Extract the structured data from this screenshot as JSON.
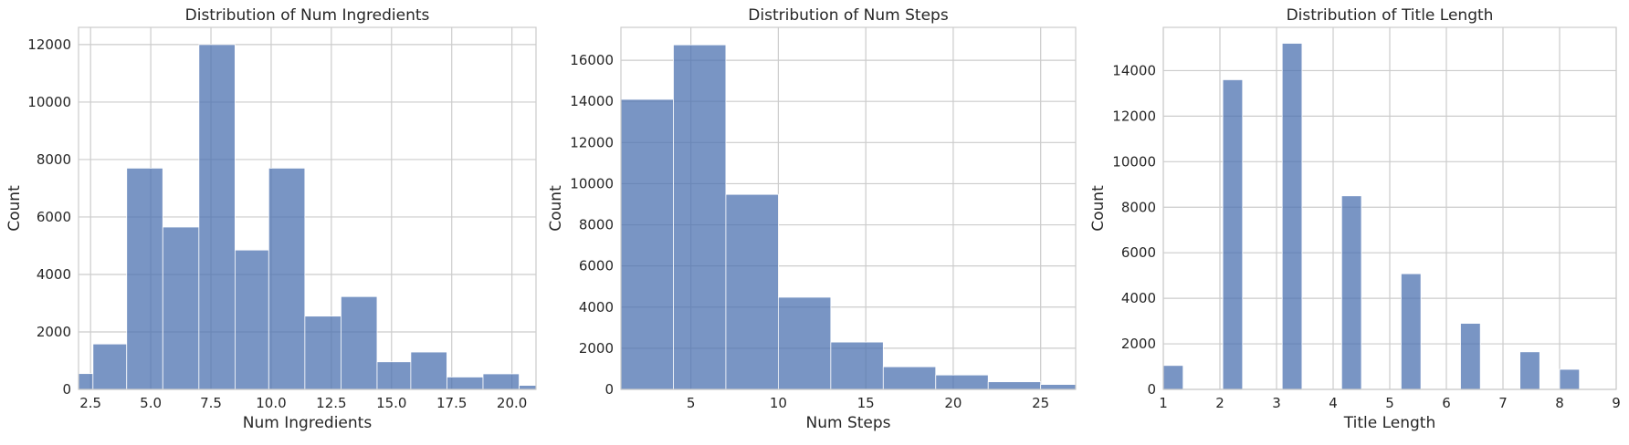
{
  "figure": {
    "style": {
      "bar_color": "#4c72b0",
      "bar_opacity": 0.75,
      "grid_color": "#cccccc",
      "axes_edge_color": "#cccccc",
      "background": "#ffffff",
      "text_color": "#262626"
    }
  },
  "chart_data": [
    {
      "type": "histogram",
      "title": "Distribution of Num Ingredients",
      "xlabel": "Num Ingredients",
      "ylabel": "Count",
      "xlim": [
        2,
        21
      ],
      "ylim": [
        0,
        12600
      ],
      "xticks": [
        2.5,
        5.0,
        7.5,
        10.0,
        12.5,
        15.0,
        17.5,
        20.0
      ],
      "xtick_labels": [
        "2.5",
        "5.0",
        "7.5",
        "10.0",
        "12.5",
        "15.0",
        "17.5",
        "20.0"
      ],
      "yticks": [
        0,
        2000,
        4000,
        6000,
        8000,
        10000,
        12000
      ],
      "ytick_labels": [
        "0",
        "2000",
        "4000",
        "6000",
        "8000",
        "10000",
        "12000"
      ],
      "grid": true,
      "bins": [
        {
          "x0": 1.1,
          "x1": 2.6,
          "count": 550
        },
        {
          "x0": 2.6,
          "x1": 4.0,
          "count": 1580
        },
        {
          "x0": 4.0,
          "x1": 5.5,
          "count": 7700
        },
        {
          "x0": 5.5,
          "x1": 7.0,
          "count": 5650
        },
        {
          "x0": 7.0,
          "x1": 8.5,
          "count": 12000
        },
        {
          "x0": 8.5,
          "x1": 9.9,
          "count": 4850
        },
        {
          "x0": 9.9,
          "x1": 11.4,
          "count": 7700
        },
        {
          "x0": 11.4,
          "x1": 12.9,
          "count": 2550
        },
        {
          "x0": 12.9,
          "x1": 14.4,
          "count": 3230
        },
        {
          "x0": 14.4,
          "x1": 15.8,
          "count": 960
        },
        {
          "x0": 15.8,
          "x1": 17.3,
          "count": 1300
        },
        {
          "x0": 17.3,
          "x1": 18.8,
          "count": 430
        },
        {
          "x0": 18.8,
          "x1": 20.3,
          "count": 540
        },
        {
          "x0": 20.3,
          "x1": 21.7,
          "count": 140
        }
      ]
    },
    {
      "type": "histogram",
      "title": "Distribution of Num Steps",
      "xlabel": "Num Steps",
      "ylabel": "Count",
      "xlim": [
        1,
        27
      ],
      "ylim": [
        0,
        17600
      ],
      "xticks": [
        5,
        10,
        15,
        20,
        25
      ],
      "xtick_labels": [
        "5",
        "10",
        "15",
        "20",
        "25"
      ],
      "yticks": [
        0,
        2000,
        4000,
        6000,
        8000,
        10000,
        12000,
        14000,
        16000
      ],
      "ytick_labels": [
        "0",
        "2000",
        "4000",
        "6000",
        "8000",
        "10000",
        "12000",
        "14000",
        "16000"
      ],
      "grid": true,
      "bins": [
        {
          "x0": 1.0,
          "x1": 4.0,
          "count": 14100
        },
        {
          "x0": 4.0,
          "x1": 7.0,
          "count": 16750
        },
        {
          "x0": 7.0,
          "x1": 10.0,
          "count": 9480
        },
        {
          "x0": 10.0,
          "x1": 13.0,
          "count": 4480
        },
        {
          "x0": 13.0,
          "x1": 16.0,
          "count": 2300
        },
        {
          "x0": 16.0,
          "x1": 19.0,
          "count": 1100
        },
        {
          "x0": 19.0,
          "x1": 22.0,
          "count": 700
        },
        {
          "x0": 22.0,
          "x1": 25.0,
          "count": 370
        },
        {
          "x0": 25.0,
          "x1": 28.0,
          "count": 240
        }
      ]
    },
    {
      "type": "histogram",
      "title": "Distribution of Title Length",
      "xlabel": "Title Length",
      "ylabel": "Count",
      "xlim": [
        1,
        9
      ],
      "ylim": [
        0,
        15900
      ],
      "xticks": [
        1,
        2,
        3,
        4,
        5,
        6,
        7,
        8,
        9
      ],
      "xtick_labels": [
        "1",
        "2",
        "3",
        "4",
        "5",
        "6",
        "7",
        "8",
        "9"
      ],
      "yticks": [
        0,
        2000,
        4000,
        6000,
        8000,
        10000,
        12000,
        14000
      ],
      "ytick_labels": [
        "0",
        "2000",
        "4000",
        "6000",
        "8000",
        "10000",
        "12000",
        "14000"
      ],
      "grid": true,
      "bins": [
        {
          "x0": 1.0,
          "x1": 1.35,
          "count": 1050
        },
        {
          "x0": 1.35,
          "x1": 1.7,
          "count": 0
        },
        {
          "x0": 1.7,
          "x1": 2.05,
          "count": 0
        },
        {
          "x0": 2.05,
          "x1": 2.4,
          "count": 13600
        },
        {
          "x0": 2.4,
          "x1": 2.75,
          "count": 0
        },
        {
          "x0": 2.75,
          "x1": 3.1,
          "count": 0
        },
        {
          "x0": 3.1,
          "x1": 3.45,
          "count": 15200
        },
        {
          "x0": 3.45,
          "x1": 3.8,
          "count": 0
        },
        {
          "x0": 3.8,
          "x1": 4.15,
          "count": 0
        },
        {
          "x0": 4.15,
          "x1": 4.5,
          "count": 8500
        },
        {
          "x0": 4.5,
          "x1": 4.85,
          "count": 0
        },
        {
          "x0": 4.85,
          "x1": 5.2,
          "count": 0
        },
        {
          "x0": 5.2,
          "x1": 5.55,
          "count": 5080
        },
        {
          "x0": 5.55,
          "x1": 5.9,
          "count": 0
        },
        {
          "x0": 5.9,
          "x1": 6.25,
          "count": 0
        },
        {
          "x0": 6.25,
          "x1": 6.6,
          "count": 2900
        },
        {
          "x0": 6.6,
          "x1": 6.95,
          "count": 0
        },
        {
          "x0": 6.95,
          "x1": 7.3,
          "count": 0
        },
        {
          "x0": 7.3,
          "x1": 7.65,
          "count": 1650
        },
        {
          "x0": 7.65,
          "x1": 8.0,
          "count": 0
        },
        {
          "x0": 8.0,
          "x1": 8.35,
          "count": 880
        },
        {
          "x0": 8.35,
          "x1": 8.7,
          "count": 0
        },
        {
          "x0": 8.7,
          "x1": 9.05,
          "count": 0
        }
      ]
    }
  ]
}
